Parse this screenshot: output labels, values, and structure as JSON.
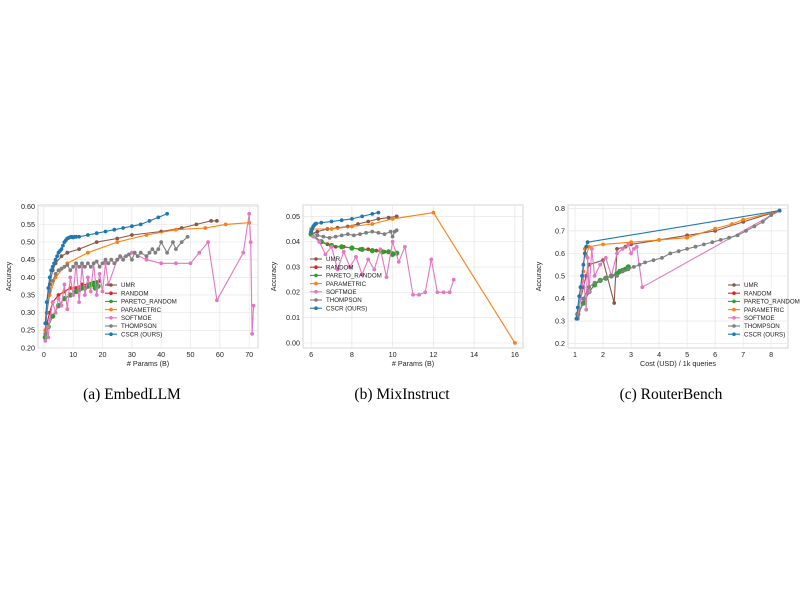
{
  "colors": {
    "UMR": "#8c564b",
    "RANDOM": "#d62728",
    "PARETO_RANDOM": "#2ca02c",
    "PARAMETRIC": "#ff7f0e",
    "SOFTMOE": "#e377c2",
    "THOMPSON": "#7f7f7f",
    "CSCR (OURS)": "#1f77b4",
    "grid": "#e6e6e6",
    "frame": "#cccccc"
  },
  "chart_data": [
    {
      "type": "line",
      "caption": "(a) EmbedLLM",
      "xlabel": "# Params (B)",
      "ylabel": "Accuracy",
      "xlim": [
        -2,
        73
      ],
      "ylim": [
        0.2,
        0.605
      ],
      "xticks": [
        0,
        10,
        20,
        30,
        40,
        50,
        60,
        70
      ],
      "yticks": [
        0.2,
        0.25,
        0.3,
        0.35,
        0.4,
        0.45,
        0.5,
        0.55,
        0.6
      ],
      "ytick_labels": [
        "0.20",
        "0.25",
        "0.30",
        "0.35",
        "0.40",
        "0.45",
        "0.50",
        "0.55",
        "0.60"
      ],
      "grid": true,
      "legend_position": "center-right",
      "series": [
        {
          "name": "UMR",
          "x": [
            0.5,
            1,
            2,
            3,
            4,
            6,
            8,
            12,
            18,
            25,
            30,
            40,
            47,
            52,
            57,
            59
          ],
          "y": [
            0.25,
            0.33,
            0.38,
            0.42,
            0.44,
            0.46,
            0.47,
            0.48,
            0.5,
            0.51,
            0.52,
            0.53,
            0.54,
            0.55,
            0.56,
            0.56
          ]
        },
        {
          "name": "RANDOM",
          "x": [
            0.5,
            1,
            2,
            3,
            5,
            7,
            9,
            11,
            13,
            15,
            17,
            19
          ],
          "y": [
            0.24,
            0.27,
            0.3,
            0.33,
            0.35,
            0.36,
            0.37,
            0.37,
            0.38,
            0.38,
            0.385,
            0.39
          ]
        },
        {
          "name": "PARETO_RANDOM",
          "x": [
            0.5,
            1.5,
            3,
            5,
            7,
            9,
            11,
            12,
            13,
            14,
            15,
            16,
            17,
            17.5,
            18,
            18.5
          ],
          "y": [
            0.23,
            0.26,
            0.29,
            0.32,
            0.34,
            0.35,
            0.36,
            0.365,
            0.37,
            0.37,
            0.375,
            0.38,
            0.38,
            0.37,
            0.385,
            0.375
          ]
        },
        {
          "name": "PARAMETRIC",
          "x": [
            0.5,
            1,
            2,
            4,
            8,
            15,
            25,
            35,
            45,
            55,
            62,
            70
          ],
          "y": [
            0.25,
            0.3,
            0.35,
            0.4,
            0.44,
            0.47,
            0.5,
            0.52,
            0.535,
            0.54,
            0.55,
            0.555
          ]
        },
        {
          "name": "SOFTMOE",
          "x": [
            0.5,
            1,
            1.5,
            2,
            3,
            4,
            5,
            6,
            7,
            8,
            9,
            10,
            11,
            12,
            13,
            14,
            15,
            16,
            17,
            18,
            19,
            20,
            21,
            22,
            25,
            30,
            35,
            40,
            45,
            50,
            53,
            56,
            59,
            68,
            70,
            70.5,
            71,
            71.5
          ],
          "y": [
            0.22,
            0.26,
            0.23,
            0.28,
            0.33,
            0.3,
            0.34,
            0.32,
            0.38,
            0.31,
            0.4,
            0.35,
            0.44,
            0.33,
            0.43,
            0.35,
            0.4,
            0.36,
            0.44,
            0.35,
            0.41,
            0.36,
            0.44,
            0.38,
            0.45,
            0.47,
            0.45,
            0.44,
            0.44,
            0.44,
            0.47,
            0.5,
            0.335,
            0.47,
            0.58,
            0.5,
            0.24,
            0.32
          ]
        },
        {
          "name": "THOMPSON",
          "x": [
            0.5,
            1,
            2,
            3,
            4,
            5,
            6,
            7,
            8,
            9,
            10,
            11,
            12,
            13,
            14,
            15,
            16,
            17,
            18,
            19,
            20,
            21,
            22,
            23,
            24,
            25,
            26,
            27,
            28,
            29,
            30,
            31,
            32,
            33,
            35,
            36,
            37,
            38,
            39,
            40,
            42,
            44,
            45,
            47,
            49
          ],
          "y": [
            0.24,
            0.3,
            0.36,
            0.39,
            0.41,
            0.42,
            0.425,
            0.43,
            0.435,
            0.42,
            0.43,
            0.44,
            0.43,
            0.44,
            0.43,
            0.44,
            0.43,
            0.44,
            0.445,
            0.43,
            0.44,
            0.45,
            0.44,
            0.45,
            0.44,
            0.45,
            0.46,
            0.45,
            0.46,
            0.465,
            0.45,
            0.47,
            0.46,
            0.47,
            0.46,
            0.47,
            0.48,
            0.47,
            0.48,
            0.5,
            0.47,
            0.5,
            0.48,
            0.5,
            0.515
          ]
        },
        {
          "name": "CSCR (OURS)",
          "x": [
            0.5,
            1,
            1.5,
            2,
            2.5,
            3,
            3.5,
            4,
            4.5,
            5,
            5.5,
            6,
            6.5,
            7,
            7.5,
            8,
            8.5,
            9,
            9.5,
            10,
            10.5,
            11,
            12,
            15,
            18,
            21,
            24,
            27,
            30,
            33,
            36,
            39,
            42
          ],
          "y": [
            0.27,
            0.33,
            0.37,
            0.4,
            0.42,
            0.43,
            0.44,
            0.45,
            0.46,
            0.47,
            0.475,
            0.48,
            0.49,
            0.5,
            0.505,
            0.51,
            0.512,
            0.514,
            0.515,
            0.513,
            0.515,
            0.515,
            0.515,
            0.52,
            0.525,
            0.53,
            0.535,
            0.54,
            0.545,
            0.55,
            0.56,
            0.57,
            0.58
          ]
        }
      ]
    },
    {
      "type": "line",
      "caption": "(b) MixInstruct",
      "xlabel": "# Params (B)",
      "ylabel": "Accuracy",
      "xlim": [
        5.6,
        16.4
      ],
      "ylim": [
        -0.002,
        0.0545
      ],
      "xticks": [
        6,
        8,
        10,
        12,
        14,
        16
      ],
      "yticks": [
        0.0,
        0.01,
        0.02,
        0.03,
        0.04,
        0.05
      ],
      "ytick_labels": [
        "0.00",
        "0.01",
        "0.02",
        "0.03",
        "0.04",
        "0.05"
      ],
      "grid": true,
      "legend_position": "lower-left",
      "series": [
        {
          "name": "UMR",
          "x": [
            6.0,
            6.3,
            6.8,
            7.3,
            7.8,
            8.3,
            8.8,
            9.3,
            9.8,
            10.2
          ],
          "y": [
            0.043,
            0.044,
            0.045,
            0.0455,
            0.046,
            0.047,
            0.048,
            0.049,
            0.0495,
            0.05
          ]
        },
        {
          "name": "RANDOM",
          "x": [
            6.0,
            6.4,
            6.8,
            7.2,
            7.6,
            8.0,
            8.4,
            8.8,
            9.2,
            9.6,
            10.0
          ],
          "y": [
            0.043,
            0.04,
            0.039,
            0.038,
            0.038,
            0.0375,
            0.037,
            0.037,
            0.0365,
            0.036,
            0.0355
          ]
        },
        {
          "name": "PARETO_RANDOM",
          "x": [
            6.0,
            6.5,
            7.0,
            7.5,
            8.0,
            8.5,
            9.0,
            9.5,
            9.8,
            10.0,
            10.2
          ],
          "y": [
            0.043,
            0.04,
            0.0385,
            0.038,
            0.0375,
            0.037,
            0.0365,
            0.036,
            0.036,
            0.035,
            0.0355
          ]
        },
        {
          "name": "PARAMETRIC",
          "x": [
            6.0,
            7.0,
            8.0,
            9.0,
            10.0,
            12.0,
            16.0
          ],
          "y": [
            0.045,
            0.045,
            0.046,
            0.047,
            0.049,
            0.0515,
            0.0
          ]
        },
        {
          "name": "SOFTMOE",
          "x": [
            6.1,
            6.4,
            6.7,
            7.0,
            7.3,
            7.6,
            7.9,
            8.2,
            8.5,
            8.8,
            9.1,
            9.4,
            9.7,
            10.0,
            10.3,
            10.6,
            11.0,
            11.3,
            11.6,
            11.9,
            12.2,
            12.5,
            12.8,
            13.0
          ],
          "y": [
            0.042,
            0.04,
            0.035,
            0.038,
            0.029,
            0.036,
            0.03,
            0.034,
            0.027,
            0.033,
            0.029,
            0.037,
            0.026,
            0.04,
            0.032,
            0.038,
            0.019,
            0.019,
            0.02,
            0.033,
            0.02,
            0.02,
            0.02,
            0.025
          ]
        },
        {
          "name": "THOMPSON",
          "x": [
            6.0,
            6.3,
            6.6,
            6.9,
            7.2,
            7.5,
            7.8,
            8.1,
            8.4,
            8.7,
            9.0,
            9.3,
            9.6,
            9.9,
            10.0,
            10.1,
            10.2
          ],
          "y": [
            0.044,
            0.0425,
            0.042,
            0.0415,
            0.042,
            0.0425,
            0.043,
            0.0425,
            0.043,
            0.0435,
            0.044,
            0.0435,
            0.043,
            0.044,
            0.042,
            0.044,
            0.0445
          ]
        },
        {
          "name": "CSCR (OURS)",
          "x": [
            6.0,
            6.05,
            6.1,
            6.15,
            6.2,
            6.25,
            6.5,
            7.0,
            7.5,
            8.0,
            8.5,
            9.0,
            9.3
          ],
          "y": [
            0.044,
            0.045,
            0.046,
            0.0465,
            0.047,
            0.0472,
            0.0475,
            0.048,
            0.0485,
            0.049,
            0.05,
            0.051,
            0.0515
          ]
        }
      ]
    },
    {
      "type": "line",
      "caption": "(c) RouterBench",
      "xlabel": "Cost (USD) / 1k queries",
      "ylabel": "Accuracy",
      "xlim": [
        0.75,
        8.6
      ],
      "ylim": [
        0.18,
        0.815
      ],
      "xticks": [
        1,
        2,
        3,
        4,
        5,
        6,
        7,
        8
      ],
      "yticks": [
        0.2,
        0.3,
        0.4,
        0.5,
        0.6,
        0.7,
        0.8
      ],
      "ytick_labels": [
        "0.2",
        "0.3",
        "0.4",
        "0.5",
        "0.6",
        "0.7",
        "0.8"
      ],
      "grid": true,
      "legend_position": "lower-right",
      "series": [
        {
          "name": "UMR",
          "x": [
            1.1,
            1.2,
            1.3,
            1.4,
            1.5,
            2.0,
            2.4,
            2.5,
            2.8,
            3.0,
            4.0,
            5.0,
            6.0,
            7.0,
            8.3
          ],
          "y": [
            0.32,
            0.4,
            0.45,
            0.5,
            0.55,
            0.57,
            0.38,
            0.62,
            0.63,
            0.64,
            0.66,
            0.68,
            0.7,
            0.74,
            0.79
          ]
        },
        {
          "name": "RANDOM",
          "x": [
            1.1,
            1.3,
            1.5,
            1.7,
            1.9,
            2.1,
            2.3,
            2.5,
            2.7,
            2.9
          ],
          "y": [
            0.33,
            0.38,
            0.43,
            0.46,
            0.48,
            0.49,
            0.5,
            0.51,
            0.52,
            0.53
          ]
        },
        {
          "name": "PARETO_RANDOM",
          "x": [
            1.1,
            1.3,
            1.5,
            1.7,
            1.9,
            2.1,
            2.3,
            2.5,
            2.6,
            2.7,
            2.8,
            2.9
          ],
          "y": [
            0.33,
            0.38,
            0.43,
            0.46,
            0.48,
            0.49,
            0.5,
            0.51,
            0.52,
            0.525,
            0.53,
            0.54
          ]
        },
        {
          "name": "PARAMETRIC",
          "x": [
            1.1,
            1.2,
            1.3,
            1.35,
            1.4,
            1.5,
            2.0,
            3.0,
            4.0,
            5.0,
            6.0,
            6.6,
            7.0,
            8.3
          ],
          "y": [
            0.33,
            0.45,
            0.52,
            0.62,
            0.59,
            0.63,
            0.64,
            0.65,
            0.66,
            0.67,
            0.71,
            0.73,
            0.75,
            0.79
          ]
        },
        {
          "name": "SOFTMOE",
          "x": [
            1.1,
            1.2,
            1.3,
            1.4,
            1.45,
            1.5,
            1.6,
            1.7,
            1.9,
            2.1,
            2.3,
            2.5,
            2.7,
            2.9,
            3.0,
            3.1,
            3.2,
            3.4,
            8.3
          ],
          "y": [
            0.32,
            0.4,
            0.5,
            0.35,
            0.58,
            0.43,
            0.62,
            0.5,
            0.55,
            0.58,
            0.5,
            0.6,
            0.62,
            0.64,
            0.6,
            0.62,
            0.63,
            0.45,
            0.79
          ]
        },
        {
          "name": "THOMPSON",
          "x": [
            1.1,
            1.3,
            1.5,
            1.7,
            1.9,
            2.1,
            2.3,
            2.5,
            2.7,
            2.9,
            3.1,
            3.3,
            3.5,
            3.8,
            4.1,
            4.4,
            4.7,
            5.0,
            5.3,
            5.6,
            5.9,
            6.2,
            6.5,
            6.8,
            7.1,
            7.4,
            7.7,
            8.0,
            8.3
          ],
          "y": [
            0.31,
            0.4,
            0.45,
            0.47,
            0.48,
            0.49,
            0.5,
            0.5,
            0.52,
            0.53,
            0.54,
            0.55,
            0.56,
            0.57,
            0.58,
            0.6,
            0.61,
            0.62,
            0.63,
            0.64,
            0.65,
            0.66,
            0.67,
            0.68,
            0.7,
            0.72,
            0.74,
            0.77,
            0.79
          ]
        },
        {
          "name": "CSCR (OURS)",
          "x": [
            1.05,
            1.1,
            1.15,
            1.2,
            1.25,
            1.3,
            1.35,
            1.4,
            1.45,
            8.3
          ],
          "y": [
            0.31,
            0.36,
            0.41,
            0.45,
            0.5,
            0.55,
            0.6,
            0.63,
            0.65,
            0.79
          ]
        }
      ]
    }
  ]
}
